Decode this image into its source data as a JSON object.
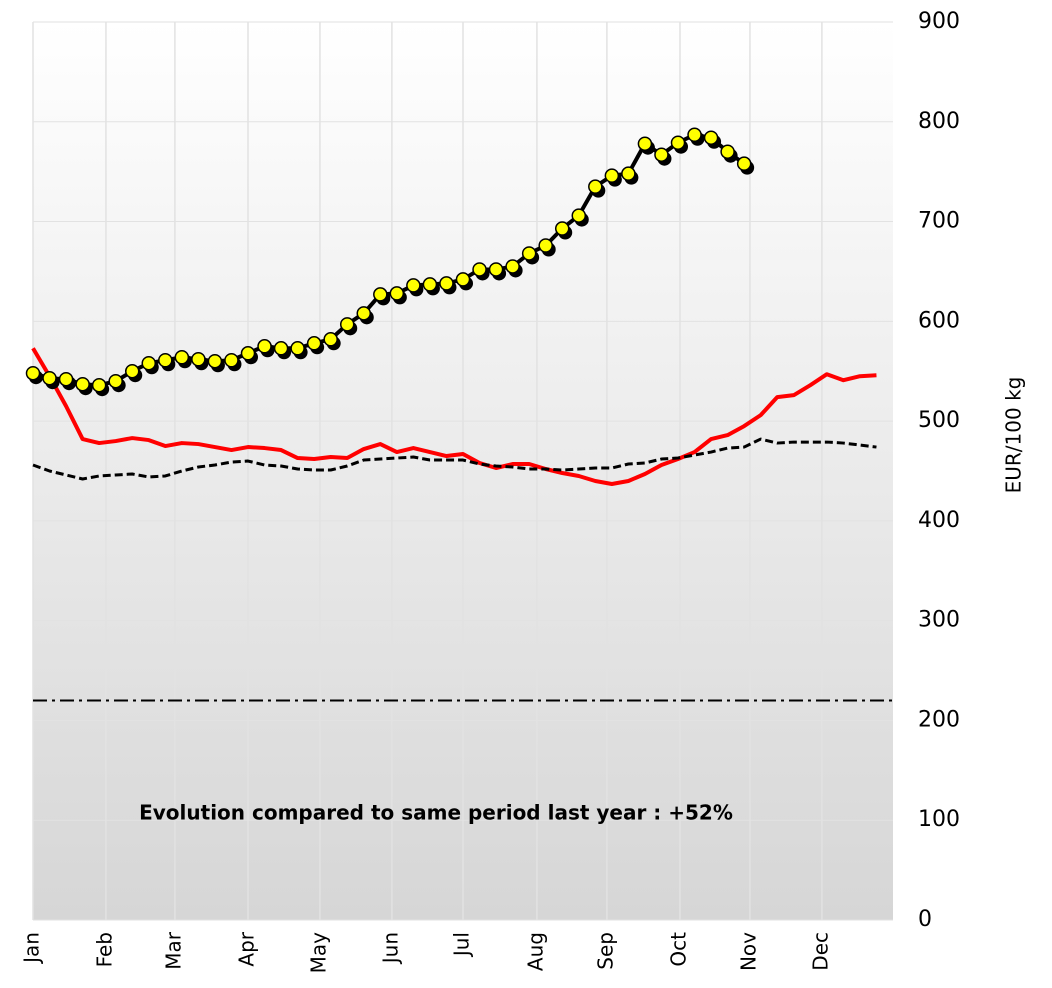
{
  "chart_data": {
    "type": "line",
    "y_label": "EUR/100 kg",
    "annotation": "Evolution compared to same period last year : +52%",
    "x": [
      0,
      1,
      2,
      3,
      4,
      5,
      6,
      7,
      8,
      9,
      10,
      11,
      12,
      13,
      14,
      15,
      16,
      17,
      18,
      19,
      20,
      21,
      22,
      23,
      24,
      25,
      26,
      27,
      28,
      29,
      30,
      31,
      32,
      33,
      34,
      35,
      36,
      37,
      38,
      39,
      40,
      41,
      42,
      43,
      44,
      45,
      46,
      47,
      48,
      49,
      50,
      51
    ],
    "xlim": [
      0,
      52
    ],
    "xticks": [
      {
        "value": 0,
        "label": "Jan"
      },
      {
        "value": 4.41,
        "label": "Feb"
      },
      {
        "value": 8.58,
        "label": "Mar"
      },
      {
        "value": 13.0,
        "label": "Apr"
      },
      {
        "value": 17.35,
        "label": "May"
      },
      {
        "value": 21.7,
        "label": "Jun"
      },
      {
        "value": 26.0,
        "label": "Jul"
      },
      {
        "value": 30.47,
        "label": "Aug"
      },
      {
        "value": 34.7,
        "label": "Sep"
      },
      {
        "value": 39.12,
        "label": "Oct"
      },
      {
        "value": 43.35,
        "label": "Nov"
      },
      {
        "value": 47.7,
        "label": "Dec"
      }
    ],
    "ylim": [
      0,
      900
    ],
    "yticks": [
      0,
      100,
      200,
      300,
      400,
      500,
      600,
      700,
      800,
      900
    ],
    "grid": true,
    "reference_line": {
      "value": 220,
      "color": "#000000"
    },
    "series": [
      {
        "color": "#000000",
        "marker_color": "#ffff00",
        "style": "solid-markers",
        "values": [
          548,
          543,
          542,
          537,
          536,
          540,
          550,
          558,
          561,
          564,
          562,
          560,
          561,
          568,
          575,
          573,
          573,
          578,
          582,
          597,
          608,
          627,
          628,
          636,
          637,
          638,
          642,
          652,
          652,
          655,
          668,
          676,
          693,
          706,
          735,
          746,
          748,
          778,
          767,
          779,
          787,
          784,
          770,
          758,
          null,
          null,
          null,
          null,
          null,
          null,
          null,
          null
        ]
      },
      {
        "color": "#ff0000",
        "style": "solid",
        "values": [
          573,
          545,
          515,
          482,
          478,
          480,
          483,
          481,
          475,
          478,
          477,
          474,
          471,
          474,
          473,
          471,
          463,
          462,
          464,
          463,
          472,
          477,
          469,
          473,
          469,
          465,
          467,
          458,
          453,
          457,
          457,
          452,
          448,
          445,
          440,
          437,
          440,
          447,
          456,
          462,
          469,
          482,
          486,
          495,
          506,
          524,
          526,
          536,
          547,
          541,
          545,
          546
        ]
      },
      {
        "color": "#000000",
        "style": "dashed",
        "values": [
          456,
          450,
          446,
          442,
          445,
          446,
          447,
          444,
          445,
          450,
          454,
          456,
          459,
          460,
          456,
          455,
          452,
          451,
          451,
          455,
          461,
          462,
          463,
          464,
          461,
          461,
          461,
          457,
          455,
          454,
          452,
          452,
          451,
          452,
          453,
          453,
          457,
          458,
          462,
          463,
          466,
          469,
          473,
          474,
          482,
          478,
          479,
          479,
          479,
          478,
          476,
          474
        ]
      }
    ]
  }
}
